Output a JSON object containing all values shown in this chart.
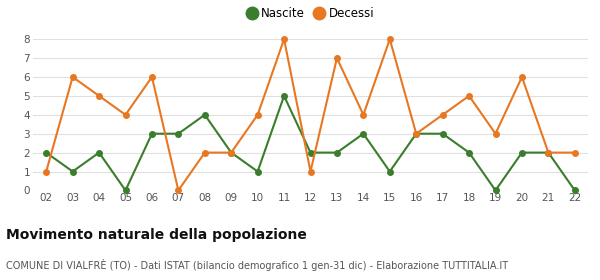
{
  "years": [
    "02",
    "03",
    "04",
    "05",
    "06",
    "07",
    "08",
    "09",
    "10",
    "11",
    "12",
    "13",
    "14",
    "15",
    "16",
    "17",
    "18",
    "19",
    "20",
    "21",
    "22"
  ],
  "nascite": [
    2,
    1,
    2,
    0,
    3,
    3,
    4,
    2,
    1,
    5,
    2,
    2,
    3,
    1,
    3,
    3,
    2,
    0,
    2,
    2,
    0
  ],
  "decessi": [
    1,
    6,
    5,
    4,
    6,
    0,
    2,
    2,
    4,
    8,
    1,
    7,
    4,
    8,
    3,
    4,
    5,
    3,
    6,
    2,
    2
  ],
  "nascite_color": "#3a7d2c",
  "decessi_color": "#e87722",
  "background_color": "#ffffff",
  "grid_color": "#e0e0e0",
  "title": "Movimento naturale della popolazione",
  "subtitle": "COMUNE DI VIALFRÈ (TO) - Dati ISTAT (bilancio demografico 1 gen-31 dic) - Elaborazione TUTTITALIA.IT",
  "legend_labels": [
    "Nascite",
    "Decessi"
  ],
  "ylim": [
    0,
    8
  ],
  "yticks": [
    0,
    1,
    2,
    3,
    4,
    5,
    6,
    7,
    8
  ],
  "title_fontsize": 10,
  "subtitle_fontsize": 7,
  "tick_fontsize": 7.5,
  "legend_fontsize": 8.5,
  "marker_size": 4,
  "line_width": 1.5
}
